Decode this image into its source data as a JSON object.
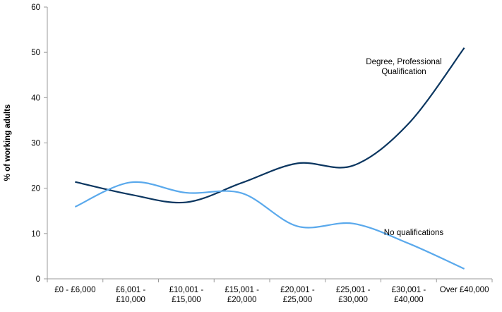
{
  "chart_data": {
    "type": "line",
    "title": "",
    "xlabel": "",
    "ylabel": "% of working adults",
    "ylim": [
      0,
      60
    ],
    "yticks": [
      0,
      10,
      20,
      30,
      40,
      50,
      60
    ],
    "grid": false,
    "legend": "none",
    "categories": [
      [
        "£0 - £6,000"
      ],
      [
        "£6,001 -",
        "£10,000"
      ],
      [
        "£10,001 -",
        "£15,000"
      ],
      [
        "£15,001 -",
        "£20,000"
      ],
      [
        "£20,001 -",
        "£25,000"
      ],
      [
        "£25,001 -",
        "£30,000"
      ],
      [
        "£30,001 -",
        "£40,000"
      ],
      [
        "Over £40,000"
      ]
    ],
    "series": [
      {
        "name": "Degree, Professional Qualification",
        "label_lines": [
          "Degree, Professional",
          "Qualification"
        ],
        "color": "#0b3660",
        "values": [
          21.4,
          18.6,
          16.9,
          21.2,
          25.5,
          25.0,
          34.3,
          51.0
        ]
      },
      {
        "name": "No qualifications",
        "label_lines": [
          "No qualifications"
        ],
        "color": "#5aa9ec",
        "values": [
          15.9,
          21.3,
          19.0,
          18.9,
          11.6,
          12.2,
          7.8,
          2.2
        ]
      }
    ]
  }
}
